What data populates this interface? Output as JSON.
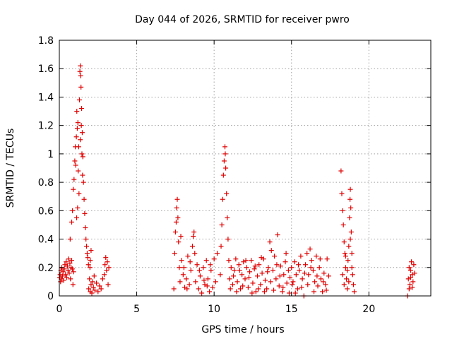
{
  "chart_data": {
    "type": "scatter",
    "title": "Day 044 of 2026, SRMTID for receiver pwro",
    "xlabel": "GPS time / hours",
    "ylabel": "SRMTID / TECUs",
    "xlim": [
      0,
      24
    ],
    "ylim": [
      0,
      1.8
    ],
    "xticks": [
      0,
      5,
      10,
      15,
      20
    ],
    "yticks": [
      0,
      0.2,
      0.4,
      0.6,
      0.8,
      1,
      1.2,
      1.4,
      1.6,
      1.8
    ],
    "xtick_labels": [
      "0",
      "5",
      "10",
      "15",
      "20"
    ],
    "ytick_labels": [
      "0",
      "0.2",
      "0.4",
      "0.6",
      "0.8",
      "1",
      "1.2",
      "1.4",
      "1.6",
      "1.8"
    ],
    "grid": true,
    "marker": "plus",
    "marker_color": "#e00000",
    "series": [
      {
        "name": "SRMTID",
        "points": [
          [
            0.02,
            0.13
          ],
          [
            0.05,
            0.15
          ],
          [
            0.08,
            0.1
          ],
          [
            0.1,
            0.18
          ],
          [
            0.13,
            0.12
          ],
          [
            0.16,
            0.2
          ],
          [
            0.2,
            0.14
          ],
          [
            0.24,
            0.17
          ],
          [
            0.28,
            0.11
          ],
          [
            0.32,
            0.19
          ],
          [
            0.36,
            0.22
          ],
          [
            0.4,
            0.15
          ],
          [
            0.44,
            0.24
          ],
          [
            0.48,
            0.13
          ],
          [
            0.52,
            0.21
          ],
          [
            0.56,
            0.18
          ],
          [
            0.6,
            0.26
          ],
          [
            0.64,
            0.16
          ],
          [
            0.68,
            0.23
          ],
          [
            0.72,
            0.12
          ],
          [
            0.76,
            0.2
          ],
          [
            0.8,
            0.25
          ],
          [
            0.84,
            0.19
          ],
          [
            0.88,
            0.08
          ],
          [
            0.92,
            0.17
          ],
          [
            0.7,
            0.4
          ],
          [
            0.8,
            0.52
          ],
          [
            0.85,
            0.6
          ],
          [
            0.9,
            0.75
          ],
          [
            0.95,
            0.82
          ],
          [
            1.0,
            0.95
          ],
          [
            1.03,
            1.05
          ],
          [
            1.06,
            0.92
          ],
          [
            1.1,
            1.12
          ],
          [
            1.13,
            1.3
          ],
          [
            1.16,
            1.18
          ],
          [
            1.2,
            1.22
          ],
          [
            1.25,
            1.05
          ],
          [
            1.3,
            1.38
          ],
          [
            1.33,
            1.58
          ],
          [
            1.36,
            1.62
          ],
          [
            1.38,
            1.55
          ],
          [
            1.4,
            1.47
          ],
          [
            1.44,
            1.32
          ],
          [
            1.48,
            1.15
          ],
          [
            1.52,
            0.98
          ],
          [
            1.56,
            0.8
          ],
          [
            1.6,
            0.68
          ],
          [
            1.64,
            0.58
          ],
          [
            1.68,
            0.48
          ],
          [
            1.72,
            0.4
          ],
          [
            1.76,
            0.35
          ],
          [
            1.8,
            0.3
          ],
          [
            1.84,
            0.27
          ],
          [
            1.88,
            0.22
          ],
          [
            1.22,
            0.88
          ],
          [
            1.27,
            0.72
          ],
          [
            1.18,
            0.62
          ],
          [
            1.12,
            0.55
          ],
          [
            1.42,
            1.2
          ],
          [
            1.46,
            1.0
          ],
          [
            1.5,
            0.85
          ],
          [
            1.35,
            1.1
          ],
          [
            1.9,
            0.05
          ],
          [
            1.95,
            0.12
          ],
          [
            2.0,
            0.03
          ],
          [
            2.05,
            0.08
          ],
          [
            2.1,
            0.02
          ],
          [
            2.15,
            0.1
          ],
          [
            2.2,
            0.06
          ],
          [
            2.25,
            0.14
          ],
          [
            2.3,
            0.04
          ],
          [
            2.4,
            0.09
          ],
          [
            2.5,
            0.03
          ],
          [
            2.6,
            0.07
          ],
          [
            2.7,
            0.05
          ],
          [
            2.8,
            0.12
          ],
          [
            2.9,
            0.15
          ],
          [
            2.95,
            0.22
          ],
          [
            3.0,
            0.27
          ],
          [
            3.05,
            0.18
          ],
          [
            3.1,
            0.24
          ],
          [
            3.15,
            0.08
          ],
          [
            3.2,
            0.2
          ],
          [
            2.0,
            0.25
          ],
          [
            2.05,
            0.32
          ],
          [
            1.98,
            0.2
          ],
          [
            7.4,
            0.05
          ],
          [
            7.45,
            0.3
          ],
          [
            7.5,
            0.45
          ],
          [
            7.55,
            0.52
          ],
          [
            7.58,
            0.62
          ],
          [
            7.62,
            0.68
          ],
          [
            7.66,
            0.55
          ],
          [
            7.7,
            0.38
          ],
          [
            7.75,
            0.2
          ],
          [
            7.8,
            0.1
          ],
          [
            7.9,
            0.25
          ],
          [
            8.0,
            0.15
          ],
          [
            8.1,
            0.06
          ],
          [
            8.2,
            0.12
          ],
          [
            8.3,
            0.28
          ],
          [
            8.4,
            0.08
          ],
          [
            8.5,
            0.18
          ],
          [
            8.6,
            0.35
          ],
          [
            8.65,
            0.42
          ],
          [
            8.7,
            0.45
          ],
          [
            8.75,
            0.3
          ],
          [
            8.8,
            0.1
          ],
          [
            8.9,
            0.22
          ],
          [
            9.0,
            0.05
          ],
          [
            9.1,
            0.14
          ],
          [
            9.2,
            0.02
          ],
          [
            9.3,
            0.2
          ],
          [
            9.4,
            0.08
          ],
          [
            9.5,
            0.25
          ],
          [
            9.6,
            0.12
          ],
          [
            9.7,
            0.03
          ],
          [
            9.8,
            0.18
          ],
          [
            9.9,
            0.06
          ],
          [
            10.0,
            0.26
          ],
          [
            10.1,
            0.1
          ],
          [
            10.2,
            0.3
          ],
          [
            7.85,
            0.42
          ],
          [
            8.05,
            0.2
          ],
          [
            8.25,
            0.05
          ],
          [
            8.45,
            0.24
          ],
          [
            9.05,
            0.18
          ],
          [
            9.35,
            0.11
          ],
          [
            9.55,
            0.07
          ],
          [
            9.75,
            0.22
          ],
          [
            10.4,
            0.15
          ],
          [
            10.45,
            0.35
          ],
          [
            10.5,
            0.5
          ],
          [
            10.55,
            0.68
          ],
          [
            10.6,
            0.85
          ],
          [
            10.65,
            0.95
          ],
          [
            10.7,
            1.05
          ],
          [
            10.72,
            1.0
          ],
          [
            10.75,
            0.9
          ],
          [
            10.8,
            0.72
          ],
          [
            10.85,
            0.55
          ],
          [
            10.9,
            0.4
          ],
          [
            10.95,
            0.25
          ],
          [
            11.0,
            0.12
          ],
          [
            11.1,
            0.2
          ],
          [
            11.2,
            0.08
          ],
          [
            11.3,
            0.18
          ],
          [
            11.4,
            0.26
          ],
          [
            11.5,
            0.1
          ],
          [
            11.6,
            0.22
          ],
          [
            11.7,
            0.05
          ],
          [
            11.8,
            0.15
          ],
          [
            11.9,
            0.24
          ],
          [
            12.0,
            0.12
          ],
          [
            12.1,
            0.2
          ],
          [
            12.2,
            0.06
          ],
          [
            12.3,
            0.17
          ],
          [
            12.4,
            0.25
          ],
          [
            12.5,
            0.09
          ],
          [
            12.6,
            0.19
          ],
          [
            12.7,
            0.03
          ],
          [
            12.8,
            0.14
          ],
          [
            12.9,
            0.22
          ],
          [
            13.0,
            0.08
          ],
          [
            13.1,
            0.16
          ],
          [
            13.2,
            0.26
          ],
          [
            13.3,
            0.11
          ],
          [
            13.4,
            0.05
          ],
          [
            13.5,
            0.2
          ],
          [
            13.6,
            0.38
          ],
          [
            13.7,
            0.32
          ],
          [
            13.8,
            0.18
          ],
          [
            13.9,
            0.28
          ],
          [
            14.0,
            0.12
          ],
          [
            14.1,
            0.43
          ],
          [
            14.2,
            0.07
          ],
          [
            14.3,
            0.21
          ],
          [
            14.4,
            0.03
          ],
          [
            14.5,
            0.15
          ],
          [
            14.6,
            0.24
          ],
          [
            14.7,
            0.09
          ],
          [
            14.8,
            0.18
          ],
          [
            14.9,
            0.13
          ],
          [
            11.05,
            0.05
          ],
          [
            11.25,
            0.14
          ],
          [
            11.45,
            0.03
          ],
          [
            11.65,
            0.18
          ],
          [
            11.85,
            0.07
          ],
          [
            12.05,
            0.25
          ],
          [
            12.25,
            0.13
          ],
          [
            12.45,
            0.02
          ],
          [
            12.65,
            0.21
          ],
          [
            12.85,
            0.05
          ],
          [
            13.05,
            0.27
          ],
          [
            13.25,
            0.03
          ],
          [
            13.45,
            0.17
          ],
          [
            13.65,
            0.1
          ],
          [
            13.85,
            0.04
          ],
          [
            14.05,
            0.22
          ],
          [
            14.25,
            0.14
          ],
          [
            14.45,
            0.06
          ],
          [
            14.65,
            0.3
          ],
          [
            14.85,
            0.02
          ],
          [
            15.0,
            0.2
          ],
          [
            15.1,
            0.1
          ],
          [
            15.2,
            0.24
          ],
          [
            15.3,
            0.15
          ],
          [
            15.4,
            0.05
          ],
          [
            15.5,
            0.18
          ],
          [
            15.6,
            0.28
          ],
          [
            15.7,
            0.12
          ],
          [
            15.8,
            0.0
          ],
          [
            15.9,
            0.22
          ],
          [
            16.0,
            0.3
          ],
          [
            16.1,
            0.15
          ],
          [
            16.2,
            0.33
          ],
          [
            16.3,
            0.25
          ],
          [
            16.4,
            0.18
          ],
          [
            16.5,
            0.1
          ],
          [
            16.6,
            0.28
          ],
          [
            16.7,
            0.07
          ],
          [
            16.8,
            0.2
          ],
          [
            16.9,
            0.12
          ],
          [
            17.0,
            0.03
          ],
          [
            17.1,
            0.16
          ],
          [
            17.2,
            0.08
          ],
          [
            17.3,
            0.26
          ],
          [
            17.4,
            0.14
          ],
          [
            15.05,
            0.08
          ],
          [
            15.25,
            0.02
          ],
          [
            15.45,
            0.22
          ],
          [
            15.65,
            0.06
          ],
          [
            15.85,
            0.16
          ],
          [
            16.05,
            0.08
          ],
          [
            16.25,
            0.2
          ],
          [
            16.45,
            0.03
          ],
          [
            16.65,
            0.14
          ],
          [
            16.85,
            0.26
          ],
          [
            17.05,
            0.1
          ],
          [
            17.25,
            0.04
          ],
          [
            18.2,
            0.88
          ],
          [
            18.25,
            0.72
          ],
          [
            18.3,
            0.6
          ],
          [
            18.35,
            0.5
          ],
          [
            18.4,
            0.38
          ],
          [
            18.45,
            0.3
          ],
          [
            18.5,
            0.2
          ],
          [
            18.55,
            0.12
          ],
          [
            18.6,
            0.05
          ],
          [
            18.65,
            0.25
          ],
          [
            18.7,
            0.35
          ],
          [
            18.75,
            0.55
          ],
          [
            18.78,
            0.68
          ],
          [
            18.8,
            0.75
          ],
          [
            18.83,
            0.62
          ],
          [
            18.86,
            0.45
          ],
          [
            18.9,
            0.3
          ],
          [
            18.95,
            0.15
          ],
          [
            19.0,
            0.08
          ],
          [
            19.05,
            0.03
          ],
          [
            18.3,
            0.15
          ],
          [
            18.4,
            0.08
          ],
          [
            18.5,
            0.28
          ],
          [
            18.6,
            0.18
          ],
          [
            18.7,
            0.1
          ],
          [
            18.9,
            0.2
          ],
          [
            18.8,
            0.4
          ],
          [
            22.5,
            0.0
          ],
          [
            22.55,
            0.12
          ],
          [
            22.6,
            0.2
          ],
          [
            22.65,
            0.08
          ],
          [
            22.7,
            0.18
          ],
          [
            22.75,
            0.24
          ],
          [
            22.8,
            0.15
          ],
          [
            22.85,
            0.1
          ],
          [
            22.9,
            0.22
          ],
          [
            22.95,
            0.16
          ],
          [
            22.6,
            0.05
          ],
          [
            22.8,
            0.06
          ],
          [
            22.7,
            0.13
          ]
        ]
      }
    ]
  }
}
